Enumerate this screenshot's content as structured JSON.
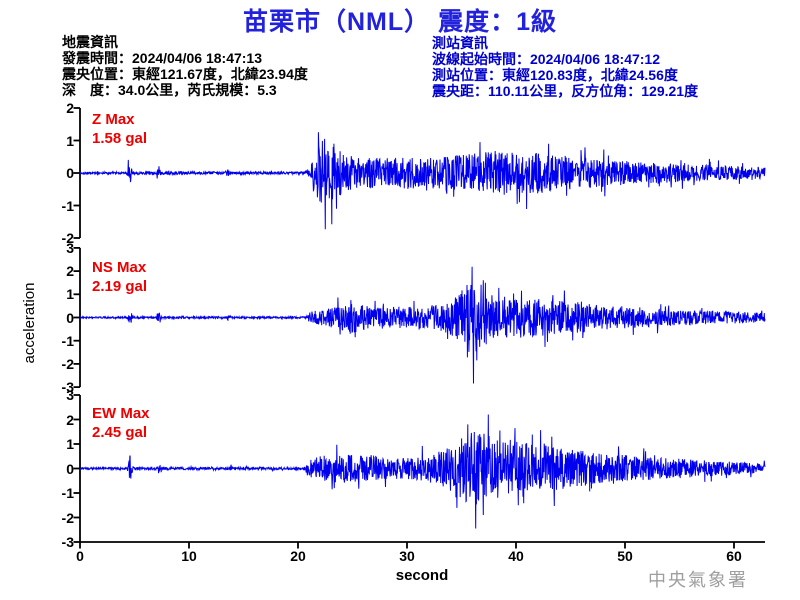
{
  "title": "苗栗市（NML） 震度：1級",
  "event_info": {
    "heading": "地震資訊",
    "lines": [
      "發震時間：2024/04/06 18:47:13",
      "震央位置：東經121.67度，北緯23.94度",
      "深　度：34.0公里，芮氏規模：5.3"
    ]
  },
  "station_info": {
    "heading": "測站資訊",
    "lines": [
      "波線起始時間：2024/04/06 18:47:12",
      "測站位置：東經120.83度，北緯24.56度",
      "震央距：110.11公里，反方位角：129.21度"
    ]
  },
  "watermark": "中央氣象署",
  "colors": {
    "title": "#2222dd",
    "station_info": "#0000cc",
    "max_label": "#ee0000",
    "trace": "#0000ee",
    "axis": "#000000",
    "watermark": "#9e9e9e"
  },
  "chart_data": {
    "type": "line",
    "title": "苗栗市（NML） 震度：1級",
    "xlabel": "second",
    "ylabel": "acceleration",
    "x_range": [
      0,
      63
    ],
    "x_ticks": [
      0,
      10,
      20,
      30,
      40,
      50,
      60
    ],
    "grid": false,
    "panels": [
      {
        "id": "Z",
        "label": "Z Max",
        "max_label": "1.58 gal",
        "max_gal": 1.58,
        "ylim": [
          -2,
          2
        ],
        "yticks": [
          2,
          1,
          0,
          -1,
          -2
        ],
        "envelope_gal": [
          [
            0,
            0.035
          ],
          [
            4.3,
            0.04
          ],
          [
            4.55,
            0.5
          ],
          [
            4.8,
            0.05
          ],
          [
            7.0,
            0.04
          ],
          [
            7.2,
            0.32
          ],
          [
            7.45,
            0.05
          ],
          [
            13.3,
            0.04
          ],
          [
            13.55,
            0.13
          ],
          [
            13.8,
            0.04
          ],
          [
            20.6,
            0.04
          ],
          [
            21.2,
            0.15
          ],
          [
            21.6,
            0.75
          ],
          [
            22.2,
            1.0
          ],
          [
            23.3,
            0.95
          ],
          [
            24.2,
            0.6
          ],
          [
            26,
            0.5
          ],
          [
            28,
            0.45
          ],
          [
            30,
            0.5
          ],
          [
            32,
            0.48
          ],
          [
            34,
            0.55
          ],
          [
            36,
            0.62
          ],
          [
            38,
            0.66
          ],
          [
            40,
            0.6
          ],
          [
            42,
            0.64
          ],
          [
            44,
            0.55
          ],
          [
            46,
            0.48
          ],
          [
            48,
            0.42
          ],
          [
            50,
            0.38
          ],
          [
            52,
            0.33
          ],
          [
            54,
            0.3
          ],
          [
            56,
            0.27
          ],
          [
            58,
            0.24
          ],
          [
            60,
            0.22
          ],
          [
            63,
            0.17
          ]
        ],
        "spikes": [
          [
            22.5,
            1.05
          ],
          [
            23.15,
            -1.58
          ],
          [
            23.6,
            -1.1
          ],
          [
            36.8,
            0.95
          ],
          [
            40.2,
            -0.95
          ],
          [
            43.1,
            0.9
          ]
        ]
      },
      {
        "id": "NS",
        "label": "NS Max",
        "max_label": "2.19 gal",
        "max_gal": 2.19,
        "ylim": [
          -3,
          3
        ],
        "yticks": [
          3,
          2,
          1,
          0,
          -1,
          -2,
          -3
        ],
        "envelope_gal": [
          [
            0,
            0.03
          ],
          [
            4.35,
            0.04
          ],
          [
            4.6,
            0.5
          ],
          [
            4.85,
            0.05
          ],
          [
            7.0,
            0.04
          ],
          [
            7.2,
            0.3
          ],
          [
            7.45,
            0.05
          ],
          [
            13.3,
            0.04
          ],
          [
            13.6,
            0.12
          ],
          [
            13.9,
            0.04
          ],
          [
            20.6,
            0.04
          ],
          [
            21.2,
            0.25
          ],
          [
            22,
            0.35
          ],
          [
            23,
            0.42
          ],
          [
            24,
            0.55
          ],
          [
            24.8,
            0.72
          ],
          [
            25.6,
            0.6
          ],
          [
            27,
            0.45
          ],
          [
            28.5,
            0.5
          ],
          [
            30,
            0.45
          ],
          [
            31.5,
            0.5
          ],
          [
            33,
            0.55
          ],
          [
            34.3,
            0.8
          ],
          [
            35.3,
            1.3
          ],
          [
            36.2,
            1.8
          ],
          [
            37,
            1.35
          ],
          [
            38,
            1.0
          ],
          [
            39,
            0.9
          ],
          [
            40,
            0.85
          ],
          [
            41,
            0.9
          ],
          [
            42,
            0.8
          ],
          [
            43,
            0.78
          ],
          [
            44,
            0.72
          ],
          [
            45,
            0.66
          ],
          [
            46,
            0.7
          ],
          [
            47,
            0.6
          ],
          [
            48,
            0.55
          ],
          [
            50,
            0.48
          ],
          [
            52,
            0.42
          ],
          [
            54,
            0.36
          ],
          [
            56,
            0.32
          ],
          [
            58,
            0.28
          ],
          [
            60,
            0.26
          ],
          [
            63,
            0.2
          ]
        ],
        "spikes": [
          [
            24.9,
            0.75
          ],
          [
            25.3,
            -0.85
          ],
          [
            36.05,
            2.19
          ],
          [
            36.5,
            -1.85
          ],
          [
            37.3,
            1.5
          ],
          [
            40.6,
            1.15
          ],
          [
            43.0,
            -1.05
          ]
        ]
      },
      {
        "id": "EW",
        "label": "EW Max",
        "max_label": "2.45 gal",
        "max_gal": 2.45,
        "ylim": [
          -3,
          3
        ],
        "yticks": [
          3,
          2,
          1,
          0,
          -1,
          -2,
          -3
        ],
        "envelope_gal": [
          [
            0,
            0.035
          ],
          [
            4.35,
            0.05
          ],
          [
            4.6,
            0.55
          ],
          [
            4.9,
            0.06
          ],
          [
            7.1,
            0.05
          ],
          [
            7.3,
            0.35
          ],
          [
            7.55,
            0.05
          ],
          [
            13.5,
            0.05
          ],
          [
            13.8,
            0.16
          ],
          [
            14.1,
            0.05
          ],
          [
            20.5,
            0.05
          ],
          [
            21.2,
            0.35
          ],
          [
            22,
            0.5
          ],
          [
            23,
            0.55
          ],
          [
            24,
            0.6
          ],
          [
            25,
            0.55
          ],
          [
            26.5,
            0.5
          ],
          [
            28,
            0.45
          ],
          [
            29.5,
            0.42
          ],
          [
            31,
            0.48
          ],
          [
            32.5,
            0.6
          ],
          [
            33.8,
            0.85
          ],
          [
            35,
            1.25
          ],
          [
            36,
            1.5
          ],
          [
            36.9,
            1.55
          ],
          [
            37.8,
            1.3
          ],
          [
            38.8,
            1.15
          ],
          [
            39.8,
            1.25
          ],
          [
            40.8,
            1.05
          ],
          [
            41.8,
            1.0
          ],
          [
            42.8,
            1.05
          ],
          [
            43.8,
            0.9
          ],
          [
            45,
            0.8
          ],
          [
            46.5,
            0.7
          ],
          [
            48,
            0.62
          ],
          [
            50,
            0.55
          ],
          [
            52,
            0.48
          ],
          [
            54,
            0.42
          ],
          [
            56,
            0.38
          ],
          [
            58,
            0.33
          ],
          [
            60,
            0.28
          ],
          [
            63,
            0.22
          ]
        ],
        "spikes": [
          [
            23.4,
            -0.8
          ],
          [
            35.65,
            1.8
          ],
          [
            36.4,
            -2.45
          ],
          [
            37.1,
            -1.9
          ],
          [
            38.6,
            1.55
          ],
          [
            40.3,
            -1.5
          ],
          [
            43.4,
            1.3
          ]
        ]
      }
    ]
  }
}
